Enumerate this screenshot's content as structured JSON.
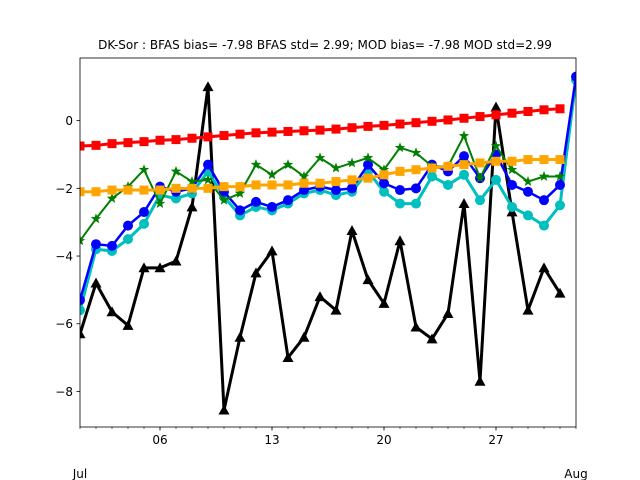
{
  "chart_data": {
    "type": "line",
    "title": "DK-Sor   : BFAS bias= -7.98 BFAS std= 2.99; MOD bias= -7.98 MOD std=2.99",
    "xlabel": "",
    "ylabel": "",
    "x_start_day": 1,
    "x_end_day": 32,
    "xlim": [
      1,
      32
    ],
    "ylim": [
      -9.05,
      1.85
    ],
    "x_ticks": [
      {
        "day": 6,
        "label": "06"
      },
      {
        "day": 13,
        "label": "13"
      },
      {
        "day": 20,
        "label": "20"
      },
      {
        "day": 27,
        "label": "27"
      }
    ],
    "x_edge_labels": [
      {
        "day": 1,
        "label": "Jul"
      },
      {
        "day": 32,
        "label": "Aug"
      }
    ],
    "y_ticks": [
      {
        "value": 0,
        "label": "0"
      },
      {
        "value": -2,
        "label": "−2"
      },
      {
        "value": -4,
        "label": "−4"
      },
      {
        "value": -6,
        "label": "−6"
      },
      {
        "value": -8,
        "label": "−8"
      }
    ],
    "grid": false,
    "legend": "none",
    "series": [
      {
        "color": "#000000",
        "marker": "triangle",
        "width": 3,
        "x": [
          1,
          2,
          3,
          4,
          5,
          6,
          7,
          8,
          9,
          10,
          11,
          12,
          13,
          14,
          15,
          16,
          17,
          18,
          19,
          20,
          21,
          22,
          23,
          24,
          25,
          26,
          27,
          28,
          29,
          30,
          31
        ],
        "values": [
          -6.3,
          -4.8,
          -5.65,
          -6.05,
          -4.35,
          -4.35,
          -4.15,
          -2.55,
          1.0,
          -8.55,
          -6.4,
          -4.5,
          -3.85,
          -7.0,
          -6.4,
          -5.2,
          -5.6,
          -3.25,
          -4.7,
          -5.4,
          -3.55,
          -6.1,
          -6.45,
          -5.7,
          -2.45,
          -7.7,
          0.4,
          -2.7,
          -5.6,
          -4.35,
          -5.1
        ]
      },
      {
        "color": "#00bfbf",
        "marker": "circle",
        "width": 3,
        "x": [
          1,
          2,
          3,
          4,
          5,
          6,
          7,
          8,
          9,
          10,
          11,
          12,
          13,
          14,
          15,
          16,
          17,
          18,
          19,
          20,
          21,
          22,
          23,
          24,
          25,
          26,
          27,
          28,
          29,
          30,
          31,
          32
        ],
        "values": [
          -5.6,
          -3.8,
          -3.85,
          -3.5,
          -3.05,
          -2.2,
          -2.3,
          -2.15,
          -1.5,
          -2.25,
          -2.8,
          -2.55,
          -2.65,
          -2.45,
          -2.15,
          -2.05,
          -2.2,
          -2.1,
          -1.5,
          -2.1,
          -2.45,
          -2.45,
          -1.65,
          -1.9,
          -1.6,
          -2.35,
          -1.75,
          -2.55,
          -2.8,
          -3.1,
          -2.5,
          1.2
        ]
      },
      {
        "color": "#0000ff",
        "marker": "circle",
        "width": 2.5,
        "x": [
          1,
          2,
          3,
          4,
          5,
          6,
          7,
          8,
          9,
          10,
          11,
          12,
          13,
          14,
          15,
          16,
          17,
          18,
          19,
          20,
          21,
          22,
          23,
          24,
          25,
          26,
          27,
          28,
          29,
          30,
          31,
          32
        ],
        "values": [
          -5.3,
          -3.65,
          -3.7,
          -3.1,
          -2.7,
          -1.95,
          -2.1,
          -2.0,
          -1.3,
          -2.1,
          -2.65,
          -2.4,
          -2.55,
          -2.35,
          -2.05,
          -1.95,
          -2.05,
          -2.0,
          -1.3,
          -1.85,
          -2.05,
          -2.0,
          -1.3,
          -1.5,
          -1.05,
          -1.7,
          -1.0,
          -1.9,
          -2.1,
          -2.35,
          -1.9,
          1.3
        ]
      },
      {
        "color": "#008000",
        "marker": "star",
        "width": 2,
        "x": [
          1,
          2,
          3,
          4,
          5,
          6,
          7,
          8,
          9,
          10,
          11,
          12,
          13,
          14,
          15,
          16,
          17,
          18,
          19,
          20,
          21,
          22,
          23,
          24,
          25,
          26,
          27,
          28,
          29,
          30,
          31
        ],
        "values": [
          -3.55,
          -2.9,
          -2.3,
          -1.95,
          -1.45,
          -2.45,
          -1.5,
          -1.8,
          -1.75,
          -2.35,
          -2.15,
          -1.3,
          -1.6,
          -1.3,
          -1.65,
          -1.1,
          -1.4,
          -1.25,
          -1.1,
          -1.45,
          -0.8,
          -0.95,
          -1.35,
          -1.35,
          -0.45,
          -1.7,
          -0.75,
          -1.45,
          -1.8,
          -1.65,
          -1.65
        ]
      },
      {
        "color": "#ffa500",
        "marker": "square",
        "width": 3,
        "x": [
          1,
          2,
          3,
          4,
          5,
          6,
          7,
          8,
          9,
          10,
          11,
          12,
          13,
          14,
          15,
          16,
          17,
          18,
          19,
          20,
          21,
          22,
          23,
          24,
          25,
          26,
          27,
          28,
          29,
          30,
          31
        ],
        "values": [
          -2.1,
          -2.1,
          -2.05,
          -2.05,
          -2.05,
          -2.05,
          -2.0,
          -2.0,
          -2.0,
          -1.95,
          -1.95,
          -1.9,
          -1.9,
          -1.9,
          -1.85,
          -1.85,
          -1.8,
          -1.75,
          -1.7,
          -1.6,
          -1.5,
          -1.45,
          -1.4,
          -1.35,
          -1.3,
          -1.25,
          -1.2,
          -1.2,
          -1.15,
          -1.15,
          -1.15
        ]
      },
      {
        "color": "#ff0000",
        "marker": "square",
        "width": 3,
        "x": [
          1,
          2,
          3,
          4,
          5,
          6,
          7,
          8,
          9,
          10,
          11,
          12,
          13,
          14,
          15,
          16,
          17,
          18,
          19,
          20,
          21,
          22,
          23,
          24,
          25,
          26,
          27,
          28,
          29,
          30,
          31
        ],
        "values": [
          -0.75,
          -0.73,
          -0.68,
          -0.65,
          -0.62,
          -0.58,
          -0.56,
          -0.52,
          -0.48,
          -0.44,
          -0.4,
          -0.36,
          -0.34,
          -0.32,
          -0.3,
          -0.28,
          -0.25,
          -0.21,
          -0.17,
          -0.14,
          -0.1,
          -0.06,
          -0.02,
          0.02,
          0.07,
          0.12,
          0.17,
          0.22,
          0.27,
          0.32,
          0.35
        ]
      }
    ]
  }
}
